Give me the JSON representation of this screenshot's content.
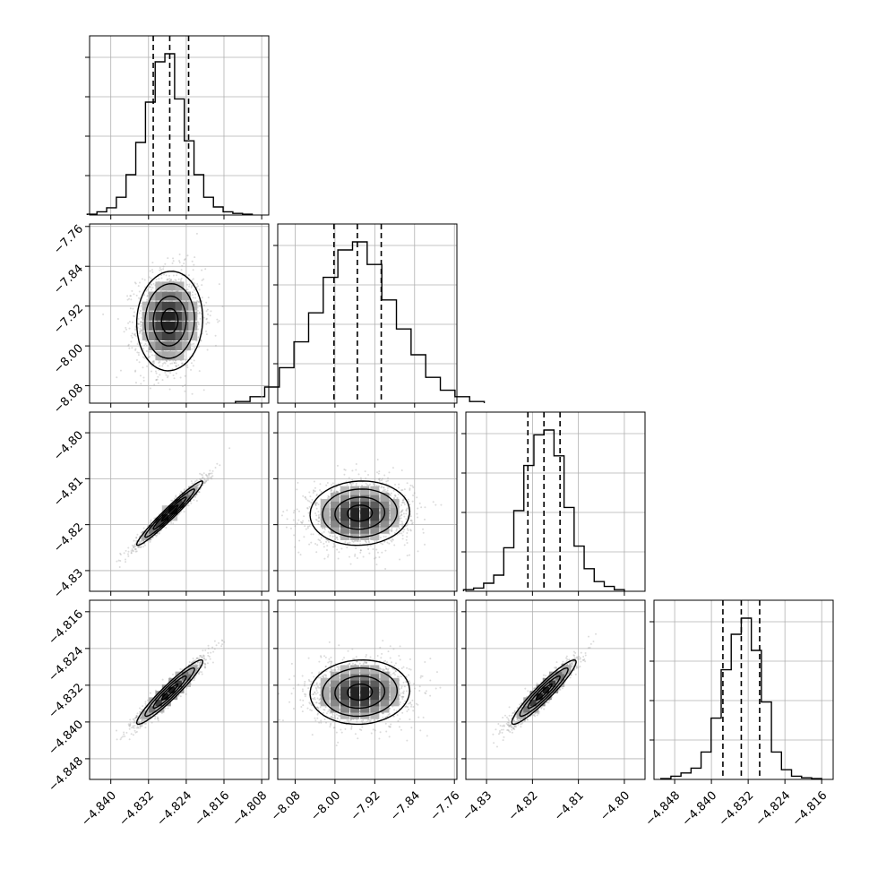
{
  "chart_data": {
    "type": "corner",
    "n_params": 4,
    "grid": true,
    "colors": {
      "hist": "#000000",
      "contour": "#000000",
      "points": "#9a9a9a",
      "grid": "#b0b0b0"
    },
    "params": [
      {
        "mean": -4.8275,
        "sd": 0.0035,
        "range": [
          -4.8445,
          -4.8065
        ],
        "ticks": [
          "−4.840",
          "−4.832",
          "−4.824",
          "−4.816",
          "−4.808"
        ],
        "tick_values": [
          -4.84,
          -4.832,
          -4.824,
          -4.816,
          -4.808
        ],
        "quantiles": [
          -4.831,
          -4.8275,
          -4.8235
        ],
        "hist": [
          0.005,
          0.02,
          0.045,
          0.11,
          0.25,
          0.45,
          0.7,
          0.95,
          1.0,
          0.72,
          0.46,
          0.25,
          0.11,
          0.05,
          0.02,
          0.01,
          0.005
        ]
      },
      {
        "mean": -7.95,
        "sd": 0.05,
        "range": [
          -8.115,
          -7.755
        ],
        "ticks": [
          "−8.08",
          "−8.00",
          "−7.92",
          "−7.84",
          "−7.76"
        ],
        "tick_values": [
          -8.08,
          -8.0,
          -7.92,
          -7.84,
          -7.76
        ],
        "quantiles": [
          -8.002,
          -7.955,
          -7.907
        ],
        "hist": [
          0.01,
          0.04,
          0.1,
          0.22,
          0.38,
          0.56,
          0.78,
          0.95,
          1.0,
          0.86,
          0.64,
          0.46,
          0.3,
          0.16,
          0.08,
          0.04,
          0.01
        ]
      },
      {
        "mean": -4.8175,
        "sd": 0.0035,
        "range": [
          -4.8345,
          -4.7955
        ],
        "ticks": [
          "−4.83",
          "−4.82",
          "−4.81",
          "−4.80"
        ],
        "tick_values": [
          -4.83,
          -4.82,
          -4.81,
          -4.8
        ],
        "quantiles": [
          -4.821,
          -4.8175,
          -4.814
        ],
        "hist": [
          0.01,
          0.02,
          0.05,
          0.1,
          0.27,
          0.5,
          0.78,
          0.97,
          1.0,
          0.84,
          0.52,
          0.28,
          0.14,
          0.06,
          0.03,
          0.01
        ]
      },
      {
        "mean": -4.8335,
        "sd": 0.0035,
        "range": [
          -4.8525,
          -4.8135
        ],
        "ticks": [
          "−4.848",
          "−4.840",
          "−4.832",
          "−4.824",
          "−4.816"
        ],
        "tick_values": [
          -4.848,
          -4.84,
          -4.832,
          -4.824,
          -4.816
        ],
        "quantiles": [
          -4.8375,
          -4.8335,
          -4.8295
        ],
        "hist": [
          0.005,
          0.02,
          0.04,
          0.07,
          0.17,
          0.38,
          0.68,
          0.9,
          1.0,
          0.8,
          0.48,
          0.17,
          0.06,
          0.02,
          0.01,
          0.005
        ]
      }
    ],
    "correlations": [
      [
        1.0,
        0.05,
        0.97,
        0.95
      ],
      [
        0.05,
        1.0,
        0.05,
        0.05
      ],
      [
        0.97,
        0.05,
        1.0,
        0.94
      ],
      [
        0.95,
        0.05,
        0.94,
        1.0
      ]
    ],
    "contour_levels_sigma": [
      0.5,
      1.0,
      1.5,
      2.0
    ]
  }
}
